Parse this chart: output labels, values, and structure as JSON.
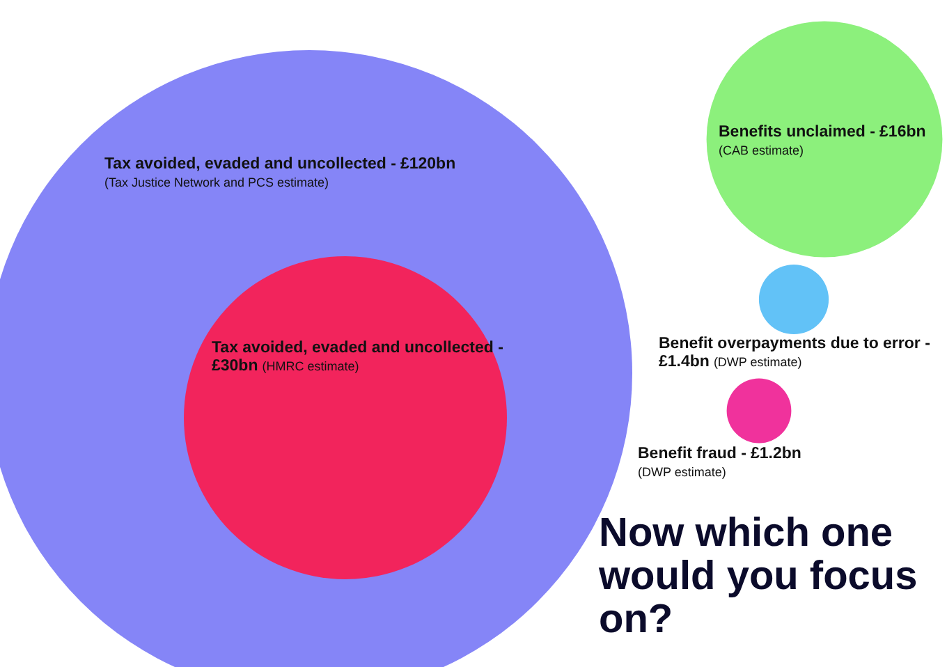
{
  "chart_data": {
    "type": "other",
    "title": "Now which one would you focus on?",
    "categories": [
      "Tax avoided, evaded and uncollected -",
      "Tax avoided, evaded and uncollected -",
      "Benefits unclaimed -",
      "Benefit overpayments due to error -",
      "Benefit fraud -"
    ],
    "value_labels": [
      "£120bn",
      "£30bn",
      "£16bn",
      "£1.4bn",
      "£1.2bn"
    ],
    "values": [
      120,
      30,
      16,
      1.4,
      1.2
    ],
    "colors": [
      "#8585f7",
      "#f2245c",
      "#8cf07c",
      "#62c2f7",
      "#f0329c"
    ],
    "annotations": [
      "(Tax Justice Network and PCS estimate)",
      "(HMRC estimate)",
      "(CAB estimate)",
      "(DWP estimate)",
      "(DWP estimate)"
    ]
  }
}
